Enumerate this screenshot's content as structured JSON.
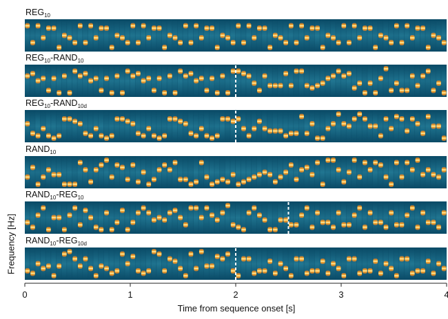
{
  "chart_data": {
    "type": "heatmap",
    "description_free": true,
    "xlabel": "Time from sequence onset [s]",
    "ylabel": "Frequency [Hz]",
    "xlim": [
      0,
      4
    ],
    "xticks": [
      "0",
      "1",
      "2",
      "3",
      "4"
    ],
    "tone_duration_s": 0.05,
    "colors": {
      "background_dark": "#063a55",
      "background_mid": "#1d6f8c",
      "tone_core": "#fff2b0",
      "tone_edge": "#ff8a1a",
      "transition_line": "#ffffff"
    },
    "panels": [
      {
        "title_main": "REG",
        "title_sub": "10",
        "title_main2": "",
        "title_sub2": "",
        "title_sub2_suffix": "",
        "transition_s": null
      },
      {
        "title_main": "REG",
        "title_sub": "10",
        "title_main2": "-RAND",
        "title_sub2": "10",
        "transition_s": 2.0
      },
      {
        "title_main": "REG",
        "title_sub": "10",
        "title_main2": "-RAND",
        "title_sub2": "10d",
        "transition_s": 2.0
      },
      {
        "title_main": "RAND",
        "title_sub": "10",
        "title_main2": "",
        "title_sub2": "",
        "transition_s": null
      },
      {
        "title_main": "RAND",
        "title_sub": "10",
        "title_main2": "-REG",
        "title_sub2": "10",
        "transition_s": 2.5
      },
      {
        "title_main": "RAND",
        "title_sub": "10",
        "title_main2": "-REG",
        "title_sub2": "10d",
        "transition_s": 2.0
      }
    ]
  }
}
